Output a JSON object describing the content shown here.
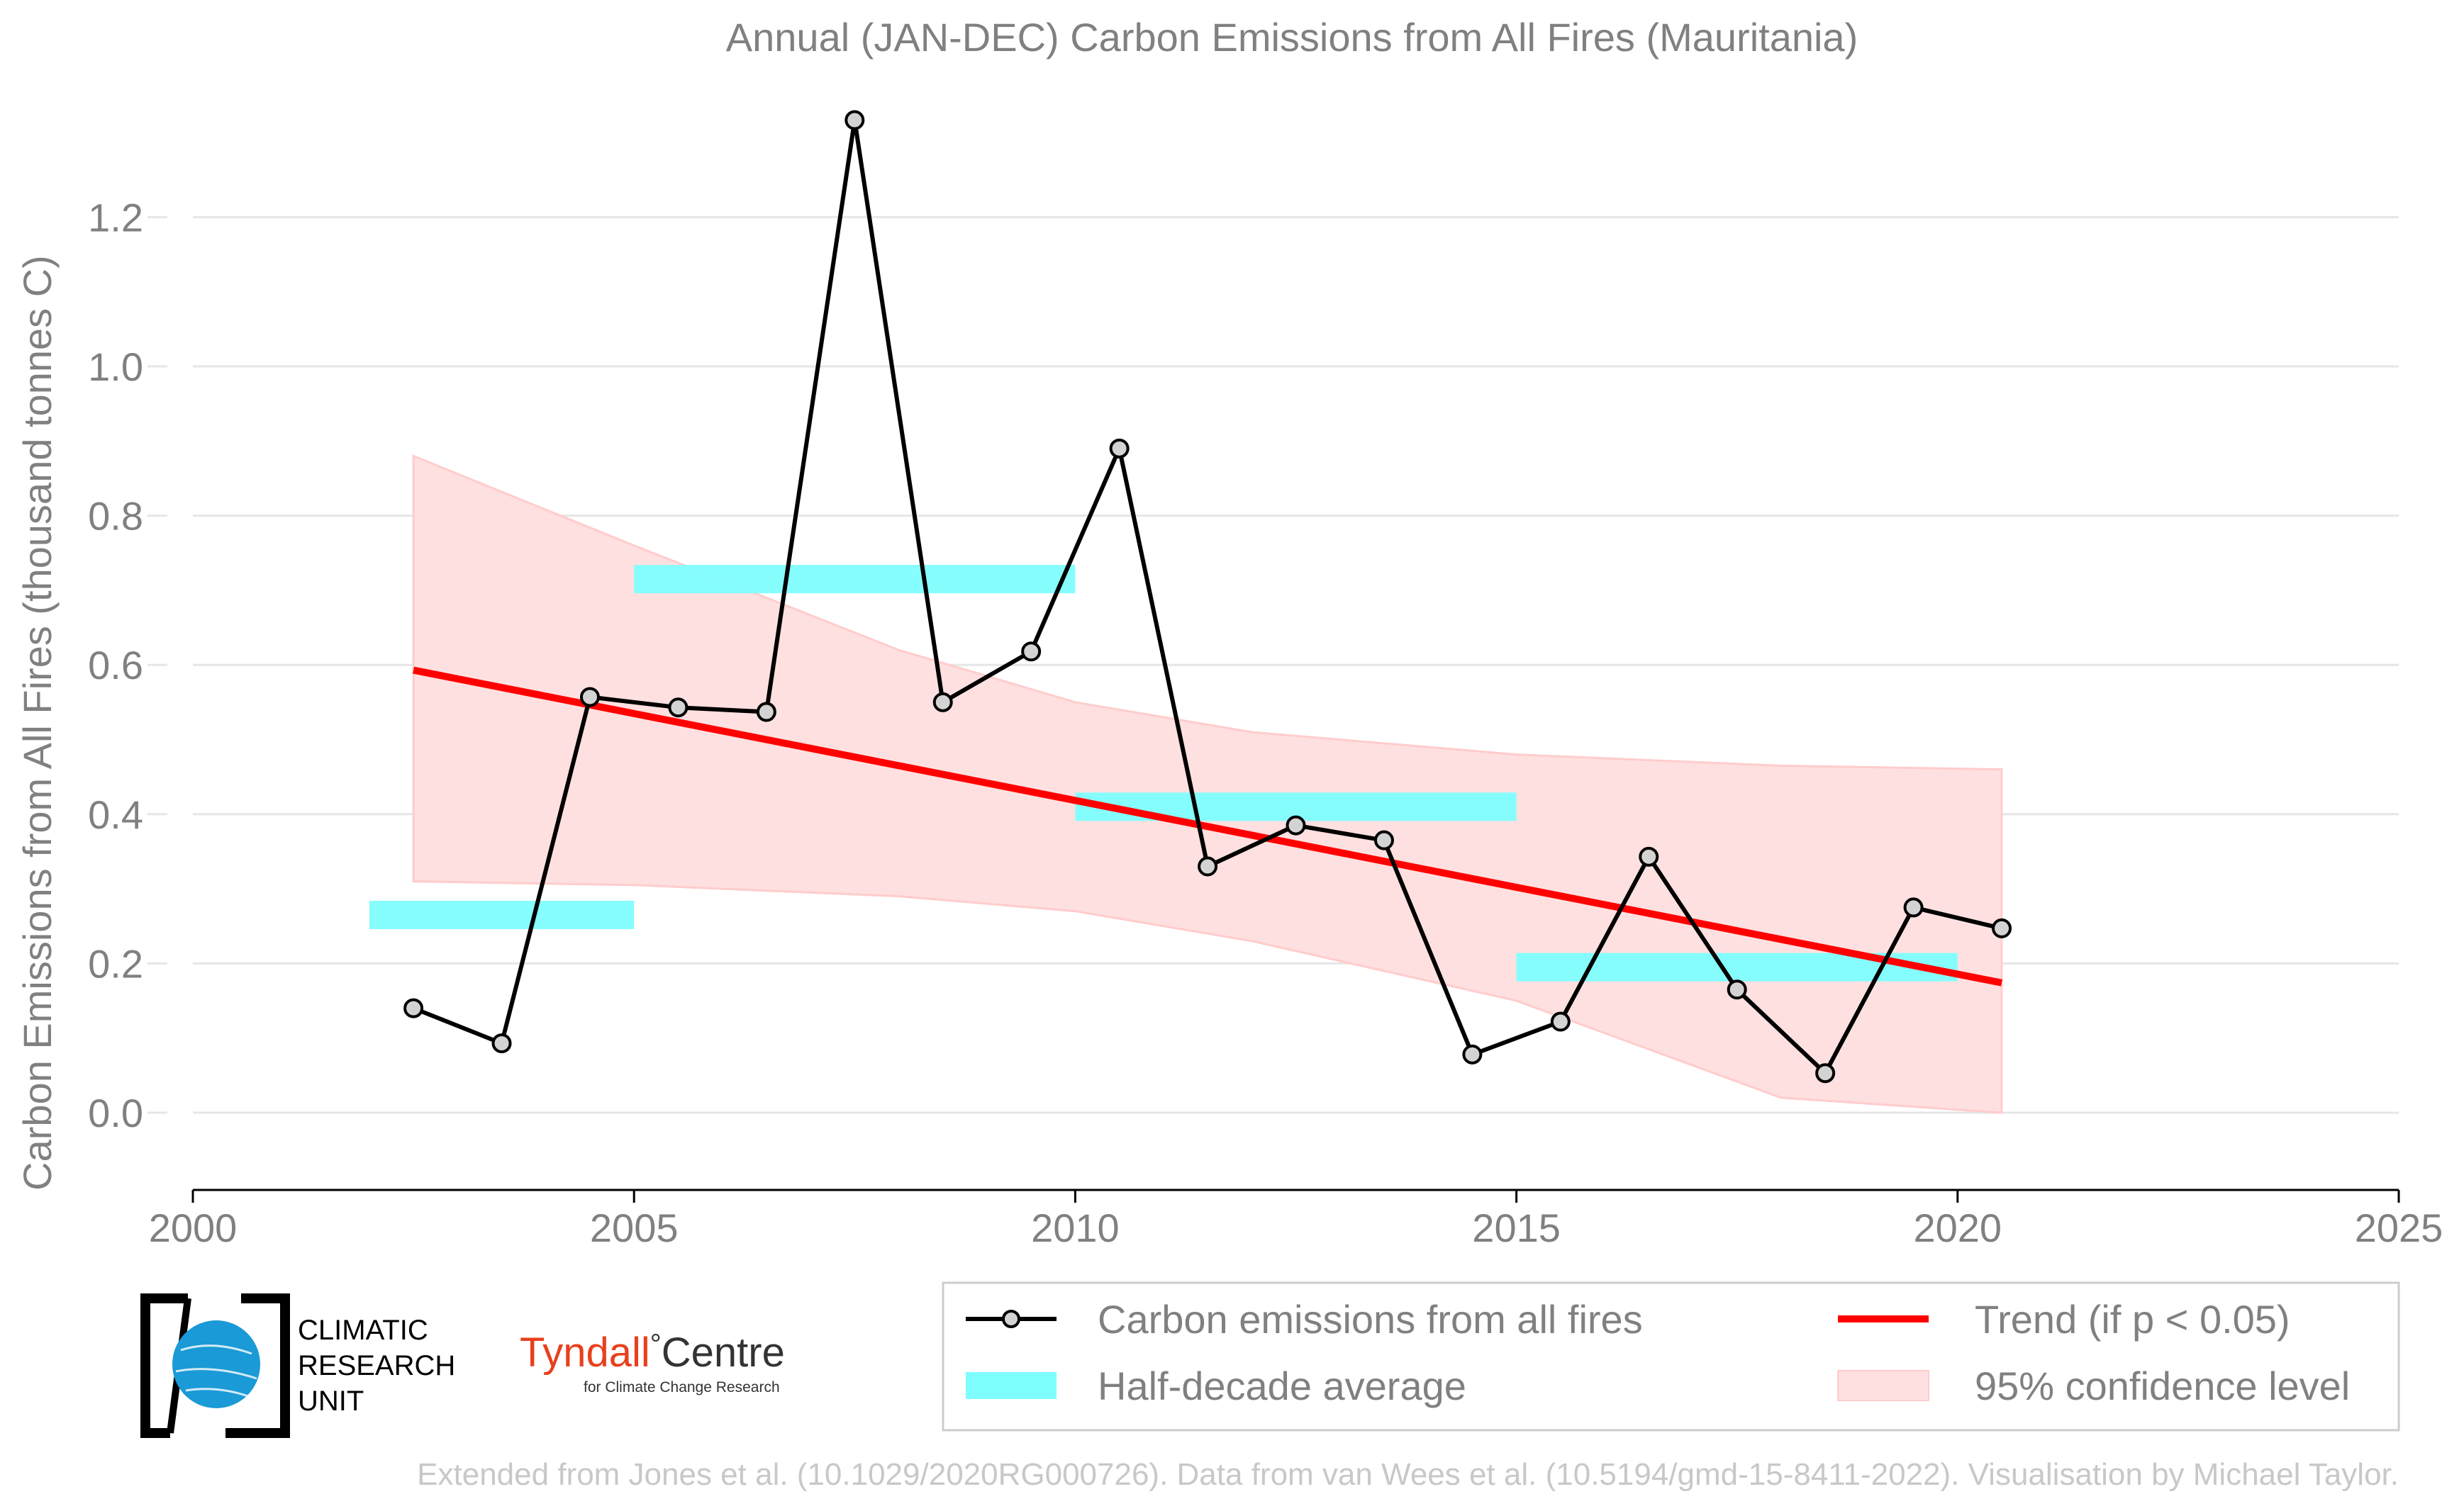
{
  "chart_data": {
    "type": "line",
    "title": "Annual (JAN-DEC) Carbon Emissions from All Fires (Mauritania)",
    "xlabel": "",
    "ylabel": "Carbon Emissions from All Fires (thousand tonnes C)",
    "xlim": [
      2000,
      2025
    ],
    "ylim": [
      -0.1,
      1.35
    ],
    "x_ticks": [
      "2000",
      "2005",
      "2010",
      "2015",
      "2020",
      "2025"
    ],
    "y_ticks": [
      "0.0",
      "0.2",
      "0.4",
      "0.6",
      "0.8",
      "1.0",
      "1.2"
    ],
    "grid": "horizontal",
    "series": [
      {
        "name": "Carbon emissions from all fires",
        "x": [
          2002.5,
          2003.5,
          2004.5,
          2005.5,
          2006.5,
          2007.5,
          2008.5,
          2009.5,
          2010.5,
          2011.5,
          2012.5,
          2013.5,
          2014.5,
          2015.5,
          2016.5,
          2017.5,
          2018.5,
          2019.5,
          2020.5
        ],
        "values": [
          0.14,
          0.093,
          0.557,
          0.543,
          0.537,
          1.33,
          0.55,
          0.618,
          0.89,
          0.33,
          0.385,
          0.365,
          0.078,
          0.122,
          0.343,
          0.165,
          0.053,
          0.275,
          0.247
        ],
        "color": "#000000"
      },
      {
        "name": "Half-decade average",
        "segments": [
          {
            "x0": 2002,
            "x1": 2005,
            "value": 0.265
          },
          {
            "x0": 2005,
            "x1": 2010,
            "value": 0.715
          },
          {
            "x0": 2010,
            "x1": 2015,
            "value": 0.41
          },
          {
            "x0": 2015,
            "x1": 2020,
            "value": 0.195
          }
        ],
        "color": "#7ffefe"
      },
      {
        "name": "Trend (if p < 0.05)",
        "x": [
          2002.5,
          2020.5
        ],
        "values": [
          0.593,
          0.174
        ],
        "color": "#ff0000"
      },
      {
        "name": "95% confidence level",
        "x": [
          2002.5,
          2005,
          2008,
          2010,
          2012,
          2015,
          2018,
          2020.5
        ],
        "upper": [
          0.88,
          0.76,
          0.62,
          0.55,
          0.51,
          0.48,
          0.465,
          0.46
        ],
        "lower": [
          0.31,
          0.305,
          0.29,
          0.27,
          0.23,
          0.15,
          0.02,
          0.0
        ],
        "color": "#ffe0e0"
      }
    ],
    "legend_position": "bottom-right"
  },
  "logos": {
    "cru_text": [
      "CLIMATIC",
      "RESEARCH",
      "UNIT"
    ],
    "tyndall_main": "Tyndall",
    "tyndall_degree": "°",
    "tyndall_centre": "Centre",
    "tyndall_sub": "for Climate Change Research"
  },
  "footer": {
    "credit": "Extended from Jones et al. (10.1029/2020RG000726). Data from van Wees et al. (10.5194/gmd-15-8411-2022). Visualisation by Michael Taylor."
  },
  "colors": {
    "axis_text": "#808080",
    "grid": "#e6e6e6",
    "credit_text": "#c8c8c8",
    "tyndall_red": "#e8401c"
  }
}
